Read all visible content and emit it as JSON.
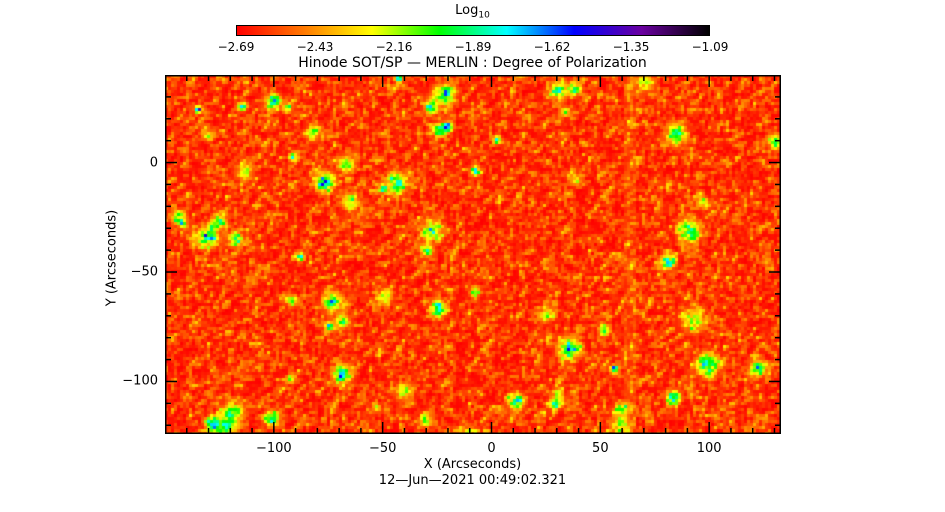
{
  "chart_data": {
    "type": "heatmap",
    "title": "Hinode SOT/SP — MERLIN : Degree of Polarization",
    "xlabel": "X (Arcseconds)",
    "ylabel": "Y (Arcseconds)",
    "footer": "12—Jun—2021 00:49:02.321",
    "xlim": [
      -150,
      133
    ],
    "ylim": [
      -124,
      40
    ],
    "xticks": [
      "−100",
      "−50",
      "0",
      "50",
      "100"
    ],
    "xtick_values": [
      -100,
      -50,
      0,
      50,
      100
    ],
    "yticks": [
      "0",
      "−50",
      "−100"
    ],
    "ytick_values": [
      0,
      -50,
      -100
    ],
    "colorbar": {
      "title": "Log",
      "title_sub": "10",
      "range": [
        -2.69,
        -1.09
      ],
      "ticks": [
        "−2.69",
        "−2.43",
        "−2.16",
        "−1.89",
        "−1.62",
        "−1.35",
        "−1.09"
      ],
      "colors": [
        "#ff0000",
        "#ff7a00",
        "#ffff00",
        "#00ff00",
        "#00ffff",
        "#0000ff",
        "#6a00a0",
        "#000000"
      ]
    },
    "grid": false
  }
}
